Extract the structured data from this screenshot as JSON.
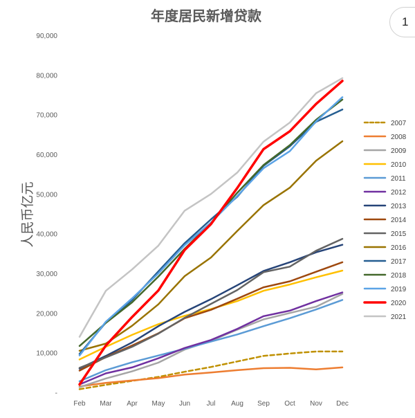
{
  "page_badge": "1",
  "chart_data": {
    "type": "line",
    "title": "年度居民新增贷款",
    "ylabel": "人民币亿元",
    "xlabel": "",
    "ylim": [
      0,
      90000
    ],
    "yticks": [
      0,
      10000,
      20000,
      30000,
      40000,
      50000,
      60000,
      70000,
      80000,
      90000
    ],
    "ytick_labels": [
      "-",
      "10,000",
      "20,000",
      "30,000",
      "40,000",
      "50,000",
      "60,000",
      "70,000",
      "80,000",
      "90,000"
    ],
    "categories": [
      "Feb",
      "Mar",
      "Apr",
      "May",
      "Jun",
      "Jul",
      "Aug",
      "Sep",
      "Oct",
      "Nov",
      "Dec"
    ],
    "grid": false,
    "legend_position": "right",
    "series": [
      {
        "name": "2007",
        "color": "#bf9000",
        "dashed": true,
        "width": 2.5,
        "values": [
          800,
          1900,
          2900,
          3900,
          5200,
          6400,
          7800,
          9200,
          9800,
          10300,
          10300
        ]
      },
      {
        "name": "2008",
        "color": "#ed7d31",
        "dashed": false,
        "width": 2.5,
        "values": [
          1500,
          2400,
          3000,
          3600,
          4500,
          5000,
          5600,
          6100,
          6200,
          5800,
          6300
        ]
      },
      {
        "name": "2009",
        "color": "#a5a5a5",
        "dashed": false,
        "width": 2.5,
        "values": [
          1300,
          3500,
          5300,
          7500,
          10800,
          13000,
          15800,
          18400,
          20000,
          21600,
          24800
        ]
      },
      {
        "name": "2010",
        "color": "#ffc000",
        "dashed": false,
        "width": 2.5,
        "values": [
          8300,
          11500,
          14500,
          17200,
          19300,
          21000,
          23000,
          25600,
          27200,
          29000,
          30700
        ]
      },
      {
        "name": "2011",
        "color": "#5b9bd5",
        "dashed": false,
        "width": 2.5,
        "values": [
          2800,
          5600,
          7600,
          9300,
          11000,
          12800,
          14600,
          16700,
          18700,
          20900,
          23300
        ]
      },
      {
        "name": "2012",
        "color": "#7030a0",
        "dashed": false,
        "width": 2.5,
        "values": [
          2000,
          4800,
          6300,
          8600,
          11200,
          13200,
          16000,
          19200,
          20600,
          23000,
          25200
        ]
      },
      {
        "name": "2013",
        "color": "#264478",
        "dashed": false,
        "width": 2.5,
        "values": [
          6000,
          9200,
          12600,
          16700,
          20300,
          23500,
          27000,
          30600,
          32800,
          35300,
          37200
        ]
      },
      {
        "name": "2014",
        "color": "#9e480e",
        "dashed": false,
        "width": 2.5,
        "values": [
          5500,
          8900,
          11800,
          14900,
          18700,
          20800,
          23600,
          26500,
          28000,
          30400,
          32800
        ]
      },
      {
        "name": "2015",
        "color": "#636363",
        "dashed": false,
        "width": 2.5,
        "values": [
          6200,
          8800,
          11500,
          14800,
          18800,
          22300,
          25800,
          30300,
          31700,
          35700,
          38700
        ]
      },
      {
        "name": "2016",
        "color": "#997300",
        "dashed": false,
        "width": 2.5,
        "values": [
          10500,
          12300,
          16800,
          22200,
          29300,
          34000,
          40700,
          47200,
          51600,
          58400,
          63300
        ]
      },
      {
        "name": "2017",
        "color": "#255e91",
        "dashed": false,
        "width": 2.5,
        "values": [
          9700,
          17600,
          23300,
          30500,
          37600,
          43600,
          49300,
          57100,
          62000,
          68200,
          71300
        ]
      },
      {
        "name": "2018",
        "color": "#43682b",
        "dashed": false,
        "width": 2.5,
        "values": [
          11700,
          17500,
          22700,
          29200,
          36200,
          42700,
          50300,
          57300,
          62300,
          68700,
          73800
        ]
      },
      {
        "name": "2019",
        "color": "#5ba3e6",
        "dashed": false,
        "width": 2.5,
        "values": [
          9300,
          17800,
          23700,
          30000,
          37100,
          42800,
          49500,
          56500,
          60800,
          68300,
          74400
        ]
      },
      {
        "name": "2020",
        "color": "#ff0000",
        "dashed": false,
        "width": 3.5,
        "values": [
          2000,
          11800,
          19000,
          25700,
          35900,
          42400,
          51500,
          61300,
          65800,
          72700,
          78500
        ]
      },
      {
        "name": "2021",
        "color": "#c4c4c4",
        "dashed": false,
        "width": 2.5,
        "values": [
          14000,
          25600,
          31000,
          37000,
          45800,
          50000,
          55400,
          63200,
          68000,
          75400,
          79200
        ]
      }
    ]
  }
}
